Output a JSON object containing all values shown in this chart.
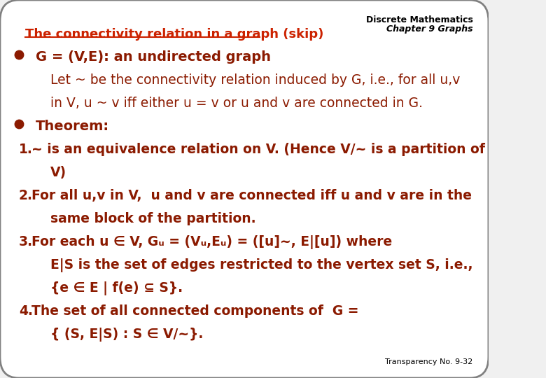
{
  "bg_color": "#f0f0f0",
  "box_color": "#ffffff",
  "box_edge_color": "#808080",
  "title_color": "#cc2200",
  "title_text": "The connectivity relation in a graph (skip)",
  "header_line1": "Discrete Mathematics",
  "header_line2": "Chapter 9 Graphs",
  "header_color": "#000000",
  "bullet_color": "#8B1A00",
  "text_color": "#8B1A00",
  "footer_text": "Transparency No. 9-32",
  "footer_color": "#000000",
  "lines": [
    {
      "type": "bullet",
      "text": "G = (V,E): an undirected graph",
      "indent": 0,
      "bold": true
    },
    {
      "type": "plain",
      "text": "Let ~ be the connectivity relation induced by G, i.e., for all u,v",
      "indent": 1,
      "bold": false
    },
    {
      "type": "plain",
      "text": "in V, u ~ v iff either u = v or u and v are connected in G.",
      "indent": 1,
      "bold": false
    },
    {
      "type": "bullet",
      "text": "Theorem:",
      "indent": 0,
      "bold": true
    },
    {
      "type": "numbered",
      "num": "1.",
      "text": "~ is an equivalence relation on V. (Hence V/~ is a partition of",
      "indent": 0,
      "bold": true
    },
    {
      "type": "plain",
      "text": "V)",
      "indent": 1,
      "bold": true
    },
    {
      "type": "numbered",
      "num": "2.",
      "text": "For all u,v in V,  u and v are connected iff u and v are in the",
      "indent": 0,
      "bold": true
    },
    {
      "type": "plain",
      "text": "same block of the partition.",
      "indent": 1,
      "bold": true
    },
    {
      "type": "numbered",
      "num": "3.",
      "text": "For each u ∈ V, Gᵤ = (Vᵤ,Eᵤ) = ([u]~, E|[u]) where",
      "indent": 0,
      "bold": true
    },
    {
      "type": "plain",
      "text": "E|S is the set of edges restricted to the vertex set S, i.e.,",
      "indent": 1,
      "bold": true
    },
    {
      "type": "plain",
      "text": "{e ∈ E | f(e) ⊆ S}.",
      "indent": 1,
      "bold": true
    },
    {
      "type": "numbered",
      "num": "4.",
      "text": "The set of all connected components of  G =",
      "indent": 0,
      "bold": true
    },
    {
      "type": "plain",
      "text": "{ (S, E|S) : S ∈ V/~}.",
      "indent": 1,
      "bold": true
    }
  ]
}
